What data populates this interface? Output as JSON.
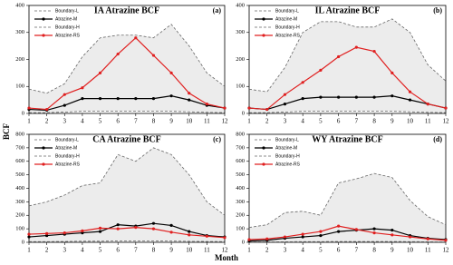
{
  "xlabel": "Month",
  "ylabel": "BCF",
  "chart_data": [
    {
      "type": "line",
      "title": "IA Atrazine BCF",
      "panel_label": "(a)",
      "x": [
        1,
        2,
        3,
        4,
        5,
        6,
        7,
        8,
        9,
        10,
        11,
        12
      ],
      "xlim": [
        1,
        12
      ],
      "xticks": [
        1,
        2,
        3,
        4,
        5,
        6,
        7,
        8,
        9,
        10,
        11,
        12
      ],
      "ylim": [
        0,
        400
      ],
      "yticks": [
        0,
        100,
        200,
        300,
        400
      ],
      "band": {
        "series": [
          0,
          2
        ],
        "color": "#ececec"
      },
      "series": [
        {
          "name": "Boundary-L",
          "color": "#666666",
          "style": "dashed",
          "values": [
            3,
            3,
            5,
            8,
            8,
            8,
            8,
            8,
            8,
            6,
            4,
            3
          ]
        },
        {
          "name": "Atrazine-M",
          "color": "#000000",
          "style": "solid",
          "values": [
            15,
            12,
            30,
            55,
            55,
            55,
            55,
            55,
            65,
            50,
            30,
            20
          ]
        },
        {
          "name": "Boundary-H",
          "color": "#666666",
          "style": "dashed",
          "values": [
            90,
            75,
            110,
            210,
            280,
            290,
            290,
            280,
            330,
            250,
            150,
            100
          ]
        },
        {
          "name": "Atrazine-RS",
          "color": "#e02020",
          "style": "solid",
          "values": [
            20,
            15,
            70,
            95,
            150,
            220,
            280,
            215,
            150,
            75,
            35,
            20
          ]
        }
      ]
    },
    {
      "type": "line",
      "title": "IL Atrazine BCF",
      "panel_label": "(b)",
      "x": [
        1,
        2,
        3,
        4,
        5,
        6,
        7,
        8,
        9,
        10,
        11,
        12
      ],
      "xlim": [
        1,
        12
      ],
      "xticks": [
        1,
        2,
        3,
        4,
        5,
        6,
        7,
        8,
        9,
        10,
        11,
        12
      ],
      "ylim": [
        0,
        400
      ],
      "yticks": [
        0,
        100,
        200,
        300,
        400
      ],
      "band": {
        "series": [
          0,
          2
        ],
        "color": "#ececec"
      },
      "series": [
        {
          "name": "Boundary-L",
          "color": "#666666",
          "style": "dashed",
          "values": [
            3,
            3,
            5,
            8,
            8,
            8,
            8,
            8,
            8,
            6,
            4,
            3
          ]
        },
        {
          "name": "Atrazine-M",
          "color": "#000000",
          "style": "solid",
          "values": [
            20,
            15,
            35,
            55,
            60,
            60,
            60,
            60,
            65,
            50,
            35,
            20
          ]
        },
        {
          "name": "Boundary-H",
          "color": "#666666",
          "style": "dashed",
          "values": [
            90,
            80,
            170,
            300,
            340,
            340,
            320,
            320,
            350,
            300,
            180,
            120
          ]
        },
        {
          "name": "Atrazine-RS",
          "color": "#e02020",
          "style": "solid",
          "values": [
            20,
            15,
            70,
            115,
            160,
            210,
            245,
            230,
            150,
            80,
            35,
            20
          ]
        }
      ]
    },
    {
      "type": "line",
      "title": "CA Atrazine BCF",
      "panel_label": "(c)",
      "x": [
        1,
        2,
        3,
        4,
        5,
        6,
        7,
        8,
        9,
        10,
        11,
        12
      ],
      "xlim": [
        1,
        12
      ],
      "xticks": [
        1,
        2,
        3,
        4,
        5,
        6,
        7,
        8,
        9,
        10,
        11,
        12
      ],
      "ylim": [
        0,
        800
      ],
      "yticks": [
        0,
        100,
        200,
        300,
        400,
        500,
        600,
        700,
        800
      ],
      "band": {
        "series": [
          0,
          2
        ],
        "color": "#ececec"
      },
      "series": [
        {
          "name": "Boundary-L",
          "color": "#666666",
          "style": "dashed",
          "values": [
            5,
            5,
            6,
            8,
            8,
            10,
            10,
            10,
            9,
            7,
            6,
            5
          ]
        },
        {
          "name": "Atrazine-M",
          "color": "#000000",
          "style": "solid",
          "values": [
            40,
            50,
            60,
            70,
            80,
            130,
            120,
            140,
            125,
            80,
            50,
            40
          ]
        },
        {
          "name": "Boundary-H",
          "color": "#666666",
          "style": "dashed",
          "values": [
            270,
            300,
            350,
            420,
            440,
            650,
            600,
            700,
            650,
            500,
            300,
            200
          ]
        },
        {
          "name": "Atrazine-RS",
          "color": "#e02020",
          "style": "solid",
          "values": [
            60,
            65,
            70,
            85,
            105,
            100,
            110,
            100,
            75,
            55,
            45,
            35
          ]
        }
      ]
    },
    {
      "type": "line",
      "title": "WY Atrazine BCF",
      "panel_label": "(d)",
      "x": [
        1,
        2,
        3,
        4,
        5,
        6,
        7,
        8,
        9,
        10,
        11,
        12
      ],
      "xlim": [
        1,
        12
      ],
      "xticks": [
        1,
        2,
        3,
        4,
        5,
        6,
        7,
        8,
        9,
        10,
        11,
        12
      ],
      "ylim": [
        0,
        800
      ],
      "yticks": [
        0,
        100,
        200,
        300,
        400,
        500,
        600,
        700,
        800
      ],
      "band": {
        "series": [
          0,
          2
        ],
        "color": "#ececec"
      },
      "series": [
        {
          "name": "Boundary-L",
          "color": "#666666",
          "style": "dashed",
          "values": [
            3,
            3,
            4,
            5,
            5,
            6,
            6,
            6,
            6,
            5,
            4,
            3
          ]
        },
        {
          "name": "Atrazine-M",
          "color": "#000000",
          "style": "solid",
          "values": [
            10,
            15,
            30,
            40,
            50,
            80,
            90,
            100,
            90,
            50,
            30,
            20
          ]
        },
        {
          "name": "Boundary-H",
          "color": "#666666",
          "style": "dashed",
          "values": [
            110,
            130,
            220,
            230,
            200,
            440,
            470,
            510,
            480,
            310,
            190,
            130
          ]
        },
        {
          "name": "Atrazine-RS",
          "color": "#e02020",
          "style": "solid",
          "values": [
            20,
            25,
            40,
            60,
            80,
            120,
            95,
            70,
            55,
            40,
            25,
            15
          ]
        }
      ]
    }
  ]
}
